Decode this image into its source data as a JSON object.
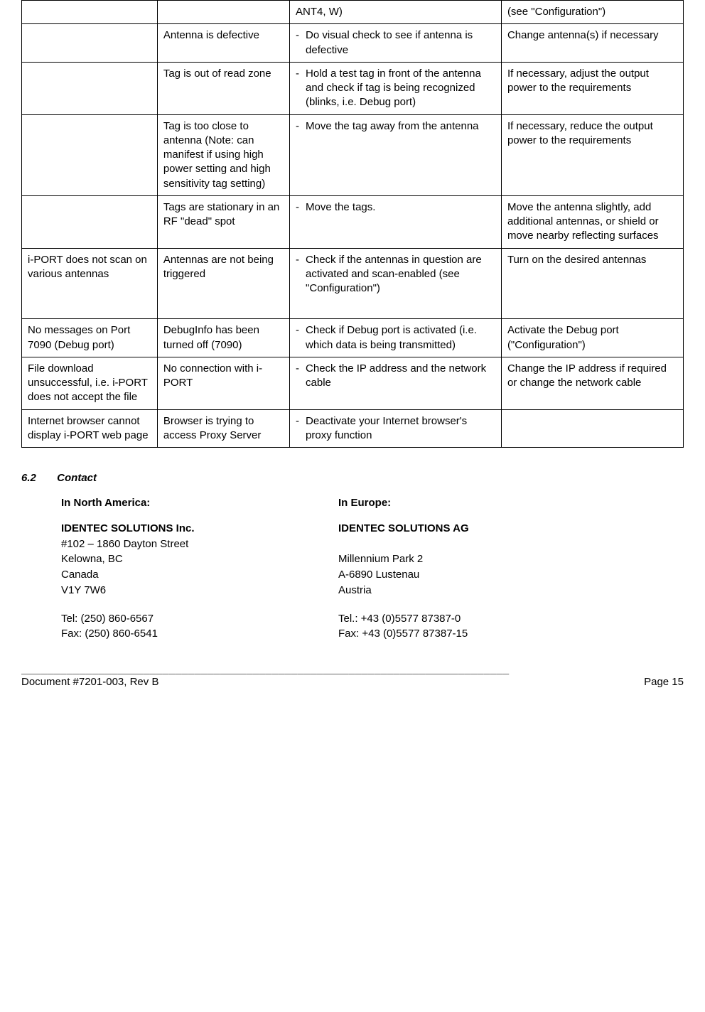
{
  "table": {
    "rows": [
      {
        "c1": "",
        "c2": "",
        "c3": "ANT4, W)",
        "c4": "(see \"Configuration\")",
        "c3_bullet": false
      },
      {
        "c1": "",
        "c2": "Antenna is defective",
        "c3": "Do visual check to see if antenna is defective",
        "c4": "Change antenna(s) if necessary",
        "c3_bullet": true
      },
      {
        "c1": "",
        "c2": "Tag is out of read zone",
        "c3": "Hold a test tag in front of the antenna and check if tag is being recognized (blinks, i.e. Debug port)",
        "c4": "If necessary, adjust the output power to the requirements",
        "c3_bullet": true
      },
      {
        "c1": "",
        "c2": "Tag is too close to antenna (Note: can manifest if using high power setting and high sensitivity tag setting)",
        "c3": "Move the tag away from the antenna",
        "c4": "If necessary, reduce the output power to the requirements",
        "c3_bullet": true
      },
      {
        "c1": "",
        "c2": "Tags are stationary in an RF \"dead\" spot",
        "c3": "Move the tags.",
        "c4": "Move the antenna slightly, add additional antennas, or shield or move nearby reflecting surfaces",
        "c3_bullet": true
      },
      {
        "c1": "i-PORT does not scan on various antennas",
        "c2": "Antennas are not being triggered",
        "c3": "Check if the antennas in question are activated and scan-enabled (see \"Configuration\")",
        "c4": "Turn on the desired antennas",
        "c3_bullet": true,
        "extra_pad": true
      },
      {
        "c1": "No messages on Port 7090 (Debug port)",
        "c2": "DebugInfo has been turned off (7090)",
        "c3": "Check if Debug port is activated (i.e. which data is being transmitted)",
        "c4": "Activate the Debug port (\"Configuration\")",
        "c3_bullet": true
      },
      {
        "c1": "File download unsuccessful, i.e. i-PORT does not accept the file",
        "c2": "No connection with i-PORT",
        "c3": "Check the IP address and the network cable",
        "c4": "Change the IP address if required or change the network cable",
        "c3_bullet": true
      },
      {
        "c1": "Internet browser cannot display i-PORT web page",
        "c2": "Browser is trying to access Proxy Server",
        "c3": "Deactivate your Internet browser's proxy function",
        "c4": "",
        "c3_bullet": true
      }
    ]
  },
  "section": {
    "number": "6.2",
    "title": "Contact"
  },
  "contact": {
    "na": {
      "header": "In North America:",
      "company": "IDENTEC SOLUTIONS Inc.",
      "addr1": "#102 – 1860 Dayton Street",
      "addr2": "Kelowna, BC",
      "addr3": "Canada",
      "addr4": "V1Y 7W6",
      "tel": "Tel: (250) 860-6567",
      "fax": "Fax: (250) 860-6541"
    },
    "eu": {
      "header": "In Europe:",
      "company": "IDENTEC SOLUTIONS AG",
      "addr1": "",
      "addr2": "Millennium Park 2",
      "addr3": "A-6890 Lustenau",
      "addr4": "Austria",
      "tel": "Tel.: +43 (0)5577 87387-0",
      "fax": "Fax: +43 (0)5577 87387-15"
    }
  },
  "footer": {
    "rule": "____________________________________________________________________________",
    "left": "Document  #7201-003, Rev B",
    "right": "Page 15"
  }
}
